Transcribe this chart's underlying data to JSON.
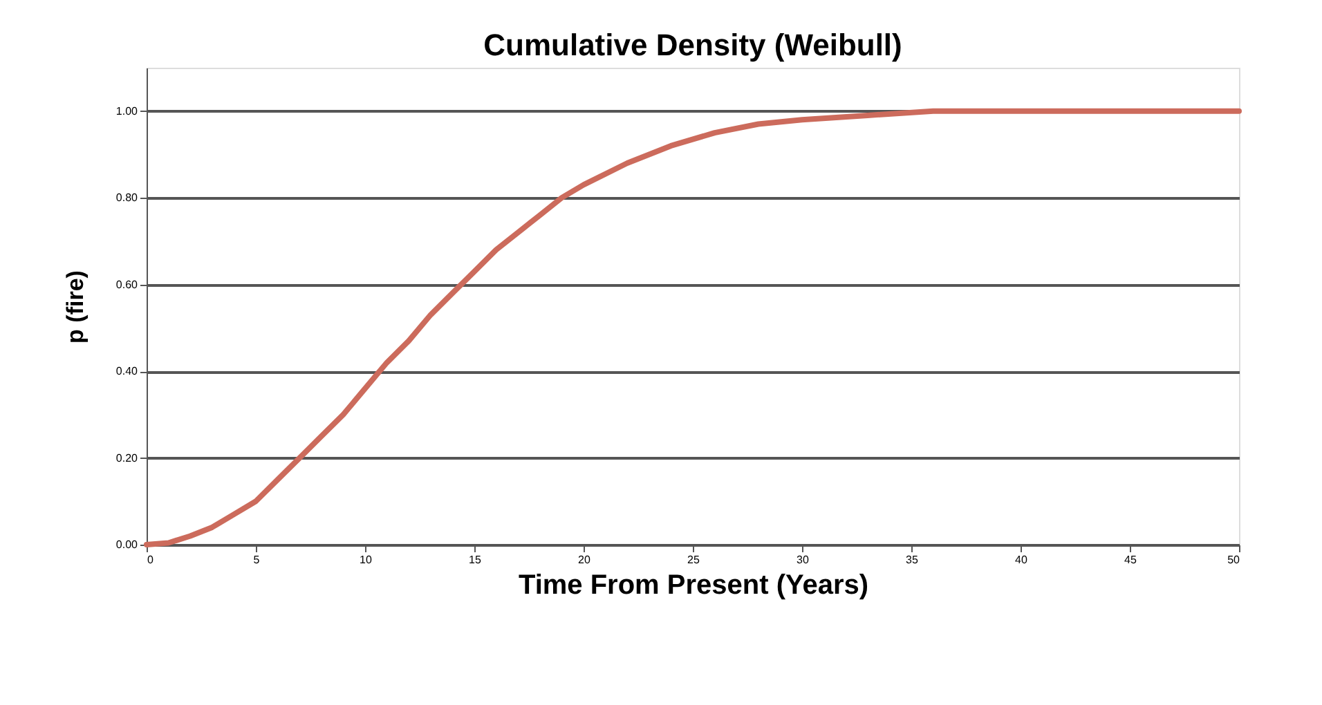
{
  "chart_data": {
    "type": "line",
    "title": "Cumulative Density (Weibull)",
    "xlabel": "Time From Present (Years)",
    "ylabel": "p (fire)",
    "x": [
      0,
      1,
      2,
      3,
      4,
      5,
      6,
      7,
      8,
      9,
      10,
      11,
      12,
      13,
      14,
      15,
      16,
      17,
      18,
      19,
      20,
      22,
      24,
      26,
      28,
      30,
      33,
      36,
      40,
      45,
      50
    ],
    "series": [
      {
        "color": "#cc6b5c",
        "values": [
          0,
          0.004,
          0.02,
          0.04,
          0.07,
          0.1,
          0.15,
          0.2,
          0.25,
          0.3,
          0.36,
          0.42,
          0.47,
          0.53,
          0.58,
          0.63,
          0.68,
          0.72,
          0.76,
          0.8,
          0.83,
          0.88,
          0.92,
          0.95,
          0.97,
          0.98,
          0.99,
          1.0,
          1.0,
          1.0,
          1.0
        ]
      }
    ],
    "xlim": [
      0,
      50
    ],
    "xticks": [
      0,
      5,
      10,
      15,
      20,
      25,
      30,
      35,
      40,
      45,
      50
    ],
    "ylim": [
      0,
      1.1
    ],
    "yticks": [
      {
        "value": 0,
        "label": "0.00"
      },
      {
        "value": 0.2,
        "label": "0.20"
      },
      {
        "value": 0.4,
        "label": "0.40"
      },
      {
        "value": 0.6,
        "label": "0.60"
      },
      {
        "value": 0.8,
        "label": "0.80"
      },
      {
        "value": 1.0,
        "label": "1.00"
      }
    ],
    "grid": "y",
    "marker": "none",
    "line_style": "solid"
  }
}
